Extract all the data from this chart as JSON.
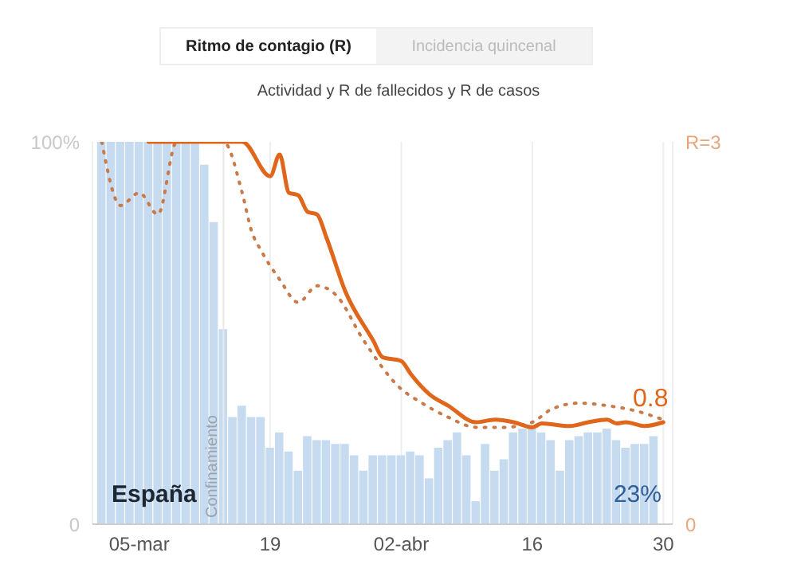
{
  "chart_data": {
    "type": "bar",
    "title": "Ritmo de contagio (R)",
    "subtitle": "Actividad y R de fallecidos y R de casos",
    "annotations": [
      "Incidencia quincenal",
      "España"
    ],
    "xlim": [
      "--02-29",
      "--05-01"
    ],
    "xticks": [
      {
        "value": "--03-05",
        "label": "05-mar"
      },
      {
        "value": "--03-19",
        "label": "19"
      },
      {
        "value": "--04-02",
        "label": "02-abr"
      },
      {
        "value": "--04-16",
        "label": "16"
      },
      {
        "value": "--04-30",
        "label": "30"
      }
    ],
    "ylim": [
      0,
      100
    ],
    "yticks": [
      0,
      {
        "value": 100,
        "label": "100%"
      }
    ],
    "y2lim": [
      0,
      3
    ],
    "y2ticks": [
      0,
      {
        "value": 3,
        "label": "R=3"
      }
    ],
    "grid": "x",
    "ref_lines": [
      {
        "axis": "x",
        "value": "--03-14",
        "label": "Confinamiento",
        "color": "#e8e8e8"
      }
    ],
    "series": [
      {
        "color": "#c6daf0",
        "x": [
          "--03-01",
          "--03-02",
          "--03-03",
          "--03-04",
          "--03-05",
          "--03-06",
          "--03-07",
          "--03-08",
          "--03-09",
          "--03-10",
          "--03-11",
          "--03-12",
          "--03-13",
          "--03-14",
          "--03-15",
          "--03-16",
          "--03-17",
          "--03-18",
          "--03-19",
          "--03-20",
          "--03-21",
          "--03-22",
          "--03-23",
          "--03-24",
          "--03-25",
          "--03-26",
          "--03-27",
          "--03-28",
          "--03-29",
          "--03-30",
          "--03-31",
          "--04-01",
          "--04-02",
          "--04-03",
          "--04-04",
          "--04-05",
          "--04-06",
          "--04-07",
          "--04-08",
          "--04-09",
          "--04-10",
          "--04-11",
          "--04-12",
          "--04-13",
          "--04-14",
          "--04-15",
          "--04-16",
          "--04-17",
          "--04-18",
          "--04-19",
          "--04-20",
          "--04-21",
          "--04-22",
          "--04-23",
          "--04-24",
          "--04-25",
          "--04-26",
          "--04-27",
          "--04-28",
          "--04-29"
        ],
        "values": [
          100,
          100,
          100,
          100,
          100,
          100,
          100,
          100,
          100,
          100,
          100,
          94,
          79,
          51,
          28,
          31,
          28,
          28,
          20,
          24,
          19,
          14,
          23,
          22,
          22,
          21,
          21,
          18,
          14,
          18,
          18,
          18,
          18,
          19,
          18,
          12,
          20,
          22,
          24,
          18,
          6,
          21,
          14,
          17,
          24,
          25,
          25,
          24,
          22,
          14,
          22,
          23,
          24,
          24,
          25,
          22,
          20,
          21,
          21,
          23
        ],
        "value_labels": [
          null,
          null,
          null,
          null,
          null,
          null,
          null,
          null,
          null,
          null,
          null,
          null,
          null,
          null,
          null,
          null,
          null,
          null,
          null,
          null,
          null,
          null,
          null,
          null,
          null,
          null,
          null,
          null,
          null,
          null,
          null,
          null,
          null,
          null,
          null,
          null,
          null,
          null,
          null,
          null,
          null,
          null,
          null,
          null,
          null,
          null,
          null,
          null,
          null,
          null,
          null,
          null,
          null,
          null,
          null,
          null,
          null,
          null,
          null,
          "23%"
        ]
      },
      {
        "type": "line",
        "axis": "y2",
        "color": "#c97a48",
        "line_style": "dotted",
        "x": [
          "--03-01",
          "--03-03",
          "--03-05",
          "--03-07",
          "--03-09",
          "--03-14",
          "--03-16",
          "--03-17",
          "--03-18",
          "--03-20",
          "--03-22",
          "--03-24",
          "--03-26",
          "--03-29",
          "--04-02",
          "--04-04",
          "--04-07",
          "--04-10",
          "--04-13",
          "--04-16",
          "--04-18",
          "--04-21",
          "--04-24",
          "--04-27",
          "--04-30"
        ],
        "values": [
          3,
          2.5,
          2.6,
          2.43,
          3,
          3,
          2.6,
          2.3,
          2.15,
          1.92,
          1.74,
          1.87,
          1.8,
          1.44,
          1.06,
          0.96,
          0.84,
          0.76,
          0.76,
          0.8,
          0.9,
          0.95,
          0.93,
          0.89,
          0.82
        ]
      },
      {
        "type": "line",
        "axis": "y2",
        "color": "#e0661c",
        "line_style": "solid",
        "x": [
          "--03-06",
          "--03-16",
          "--03-19",
          "--03-20",
          "--03-21",
          "--03-22",
          "--03-23",
          "--03-24",
          "--03-25",
          "--03-27",
          "--03-30",
          "--03-31",
          "--04-02",
          "--04-03",
          "--04-05",
          "--04-07",
          "--04-10",
          "--04-12",
          "--04-14",
          "--04-16",
          "--04-17",
          "--04-20",
          "--04-22",
          "--04-24",
          "--04-25",
          "--04-26",
          "--04-28",
          "--04-30"
        ],
        "values": [
          3,
          3,
          2.73,
          2.9,
          2.6,
          2.58,
          2.45,
          2.43,
          2.25,
          1.83,
          1.44,
          1.31,
          1.28,
          1.18,
          1.02,
          0.93,
          0.8,
          0.82,
          0.8,
          0.76,
          0.79,
          0.77,
          0.8,
          0.82,
          0.79,
          0.8,
          0.77,
          0.8
        ],
        "value_labels": [
          null,
          null,
          null,
          null,
          null,
          null,
          null,
          null,
          null,
          null,
          null,
          null,
          null,
          null,
          null,
          null,
          null,
          null,
          null,
          null,
          null,
          null,
          null,
          null,
          null,
          null,
          null,
          "0.8"
        ]
      }
    ]
  }
}
